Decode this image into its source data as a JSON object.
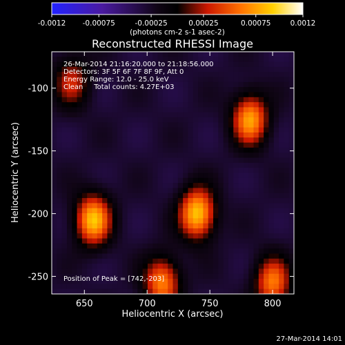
{
  "chart_data": {
    "type": "heatmap",
    "title": "Reconstructed RHESSI Image",
    "xlabel": "Heliocentric X (arcsec)",
    "ylabel": "Heliocentric Y (arcsec)",
    "xlim": [
      624,
      817
    ],
    "ylim": [
      -264,
      -71
    ],
    "xticks": [
      650,
      700,
      750,
      800
    ],
    "yticks": [
      -100,
      -150,
      -200,
      -250
    ],
    "colorbar": {
      "min": -0.0012,
      "max": 0.0012,
      "ticks": [
        "-0.0012",
        "-0.00075",
        "-0.00025",
        "0.00025",
        "0.00075",
        "0.0012"
      ],
      "tick_values": [
        -0.0012,
        -0.00075,
        -0.00025,
        0.00025,
        0.00075,
        0.0012
      ],
      "label": "(photons cm-2 s-1 asec-2)",
      "colormap": "blue-black-red-yellow-white",
      "position": "top"
    },
    "annotations": [
      "26-Mar-2014 21:16:20.000 to 21:18:56.000",
      "Detectors: 3F 5F 6F 7F 8F 9F, Att 0",
      "Energy Range: 12.0 - 25.0 keV",
      "Clean     Total counts: 4.27E+03",
      "Position of Peak = [742,-203]"
    ],
    "sources": [
      {
        "x": 657,
        "y": -205,
        "peak": 0.00115
      },
      {
        "x": 740,
        "y": -200,
        "peak": 0.0012
      },
      {
        "x": 782,
        "y": -125,
        "peak": 0.00105
      },
      {
        "x": 712,
        "y": -255,
        "peak": 0.00095
      },
      {
        "x": 800,
        "y": -255,
        "peak": 0.0009
      },
      {
        "x": 640,
        "y": -95,
        "peak": 0.0006
      }
    ],
    "timestamp": "27-Mar-2014 14:01"
  }
}
